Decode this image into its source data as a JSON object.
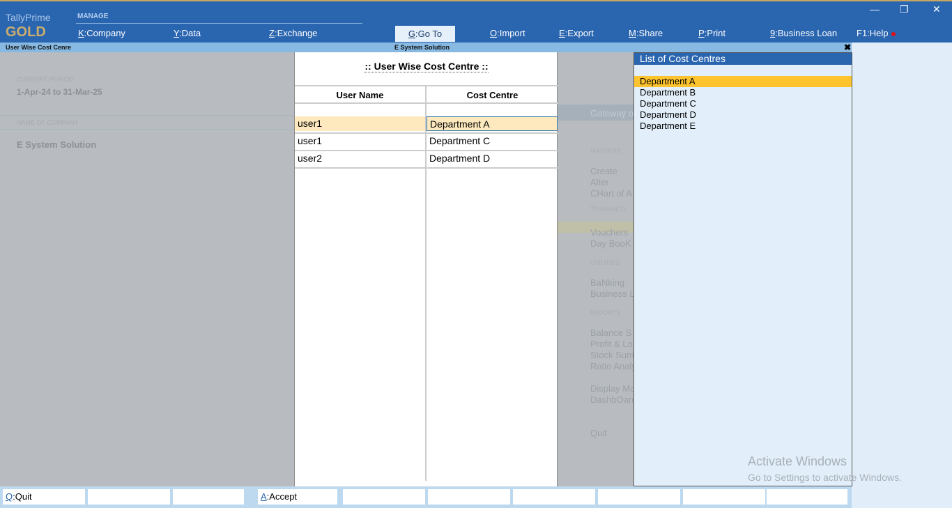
{
  "app": {
    "name": "TallyPrime",
    "edition": "GOLD",
    "section": "MANAGE"
  },
  "menu": [
    {
      "key": "K",
      "label": "Company"
    },
    {
      "key": "Y",
      "label": "Data"
    },
    {
      "key": "Z",
      "label": "Exchange"
    },
    {
      "key": "G",
      "label": "Go To"
    },
    {
      "key": "O",
      "label": "Import"
    },
    {
      "key": "E",
      "label": "Export"
    },
    {
      "key": "M",
      "label": "Share"
    },
    {
      "key": "P",
      "label": "Print"
    },
    {
      "key": "9",
      "label": "Business Loan"
    },
    {
      "key": "F1",
      "label": "Help"
    }
  ],
  "window": {
    "minimize": "—",
    "restore": "❐",
    "close": "✕"
  },
  "subbar": {
    "left": "User Wise Cost Cenre",
    "center": "E System Solution",
    "close": "✖"
  },
  "left_panel": {
    "period_label": "CURRENT PERIOD",
    "period": "1-Apr-24 to 31-Mar-25",
    "company_label": "NAME OF COMPANY",
    "company": "E System Solution"
  },
  "form": {
    "title": ":: User Wise Cost Centre ::",
    "col1": "User Name",
    "col2": "Cost Centre",
    "rows": [
      {
        "user": "user1",
        "cc": "Department A"
      },
      {
        "user": "user1",
        "cc": "Department C"
      },
      {
        "user": "user2",
        "cc": "Department D"
      }
    ]
  },
  "gateway": {
    "title": "Gateway of",
    "items": [
      {
        "t": "MASTERS",
        "s": 1
      },
      {
        "t": "Create"
      },
      {
        "t": "Alter"
      },
      {
        "t": "CHart of A"
      },
      {
        "t": "TRANSACTI",
        "s": 1
      },
      {
        "t": "Vouchers"
      },
      {
        "t": "Day BooK"
      },
      {
        "t": "UTILITIES",
        "s": 1
      },
      {
        "t": "BaNking"
      },
      {
        "t": "Business L"
      },
      {
        "t": "REPORTS",
        "s": 1
      },
      {
        "t": "Balance S"
      },
      {
        "t": "Profit & Lo"
      },
      {
        "t": "Stock Sum"
      },
      {
        "t": "Ratio Analy"
      },
      {
        "t": "Display Mo"
      },
      {
        "t": "DashbOard"
      },
      {
        "t": "Quit"
      }
    ]
  },
  "list": {
    "title": "List of Cost Centres",
    "items": [
      "Department A",
      "Department B",
      "Department C",
      "Department D",
      "Department E"
    ],
    "selected": 0
  },
  "watermark": {
    "line1": "Activate Windows",
    "line2": "Go to Settings to activate Windows."
  },
  "bottom": [
    {
      "key": "Q",
      "label": "Quit"
    },
    {
      "key": "",
      "label": ""
    },
    {
      "key": "",
      "label": ""
    },
    {
      "key": "A",
      "label": "Accept"
    },
    {
      "key": "",
      "label": ""
    },
    {
      "key": "",
      "label": ""
    },
    {
      "key": "",
      "label": ""
    },
    {
      "key": "",
      "label": ""
    },
    {
      "key": "",
      "label": ""
    },
    {
      "key": "",
      "label": ""
    }
  ],
  "colors": {
    "brand_blue": "#2a65b0",
    "gold": "#c9ad6d",
    "highlight": "#fde9bd",
    "list_selected": "#fec42f"
  }
}
